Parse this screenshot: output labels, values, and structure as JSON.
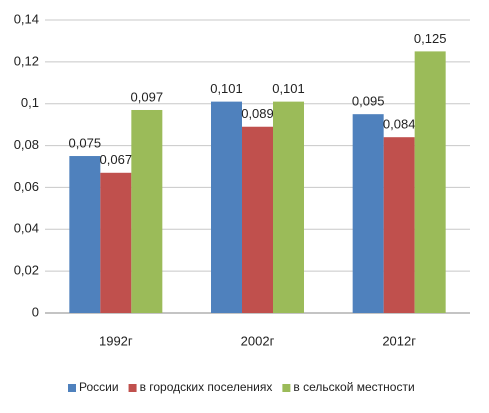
{
  "chart_data": {
    "type": "bar",
    "categories": [
      "1992г",
      "2002г",
      "2012г"
    ],
    "series": [
      {
        "name": "России",
        "color": "#4f81bd",
        "values": [
          0.075,
          0.101,
          0.095
        ],
        "value_labels": [
          "0,075",
          "0,101",
          "0,095"
        ]
      },
      {
        "name": "в городских поселениях",
        "color": "#c0504d",
        "values": [
          0.067,
          0.089,
          0.084
        ],
        "value_labels": [
          "0,067",
          "0,089",
          "0,084"
        ]
      },
      {
        "name": "в сельской местности",
        "color": "#9bbb59",
        "values": [
          0.097,
          0.101,
          0.125
        ],
        "value_labels": [
          "0,097",
          "0,101",
          "0,125"
        ]
      }
    ],
    "ylim": [
      0,
      0.14
    ],
    "yticks": [
      0,
      {
        "value": 0.02,
        "label": "0,02"
      },
      {
        "value": 0.04,
        "label": "0,04"
      },
      {
        "value": 0.06,
        "label": "0,06"
      },
      {
        "value": 0.08,
        "label": "0,08"
      },
      {
        "value": 0.1,
        "label": "0,1"
      },
      {
        "value": 0.12,
        "label": "0,12"
      },
      {
        "value": 0.14,
        "label": "0,14"
      }
    ],
    "grid": true,
    "legend": "bottom"
  }
}
